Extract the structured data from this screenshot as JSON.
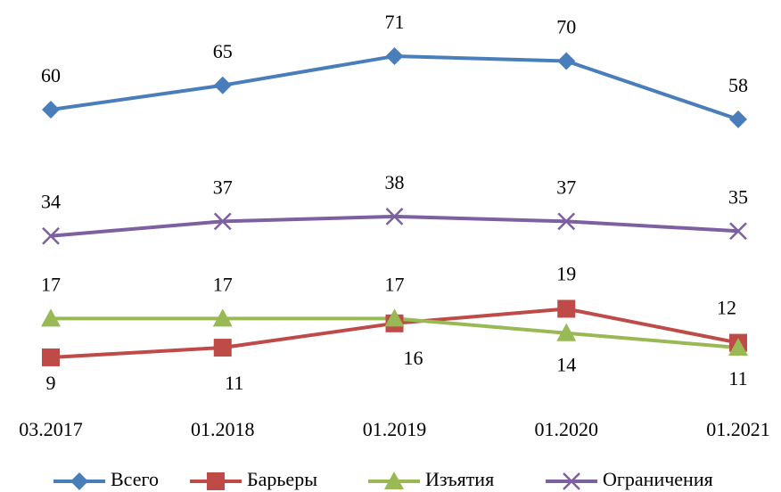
{
  "chart_data": {
    "type": "line",
    "categories": [
      "03.2017",
      "01.2018",
      "01.2019",
      "01.2020",
      "01.2021"
    ],
    "series": [
      {
        "name": "Всего",
        "color": "#4a7ebb",
        "marker": "diamond",
        "values": [
          60,
          65,
          71,
          70,
          58
        ]
      },
      {
        "name": "Барьеры",
        "color": "#be4b48",
        "marker": "square",
        "values": [
          9,
          11,
          16,
          19,
          12
        ]
      },
      {
        "name": "Изъятия",
        "color": "#98b954",
        "marker": "triangle",
        "values": [
          17,
          17,
          17,
          14,
          11
        ]
      },
      {
        "name": "Ограничения",
        "color": "#7d60a0",
        "marker": "x",
        "values": [
          34,
          37,
          38,
          37,
          35
        ]
      }
    ],
    "ylim": [
      0,
      80
    ],
    "legend": "bottom"
  }
}
